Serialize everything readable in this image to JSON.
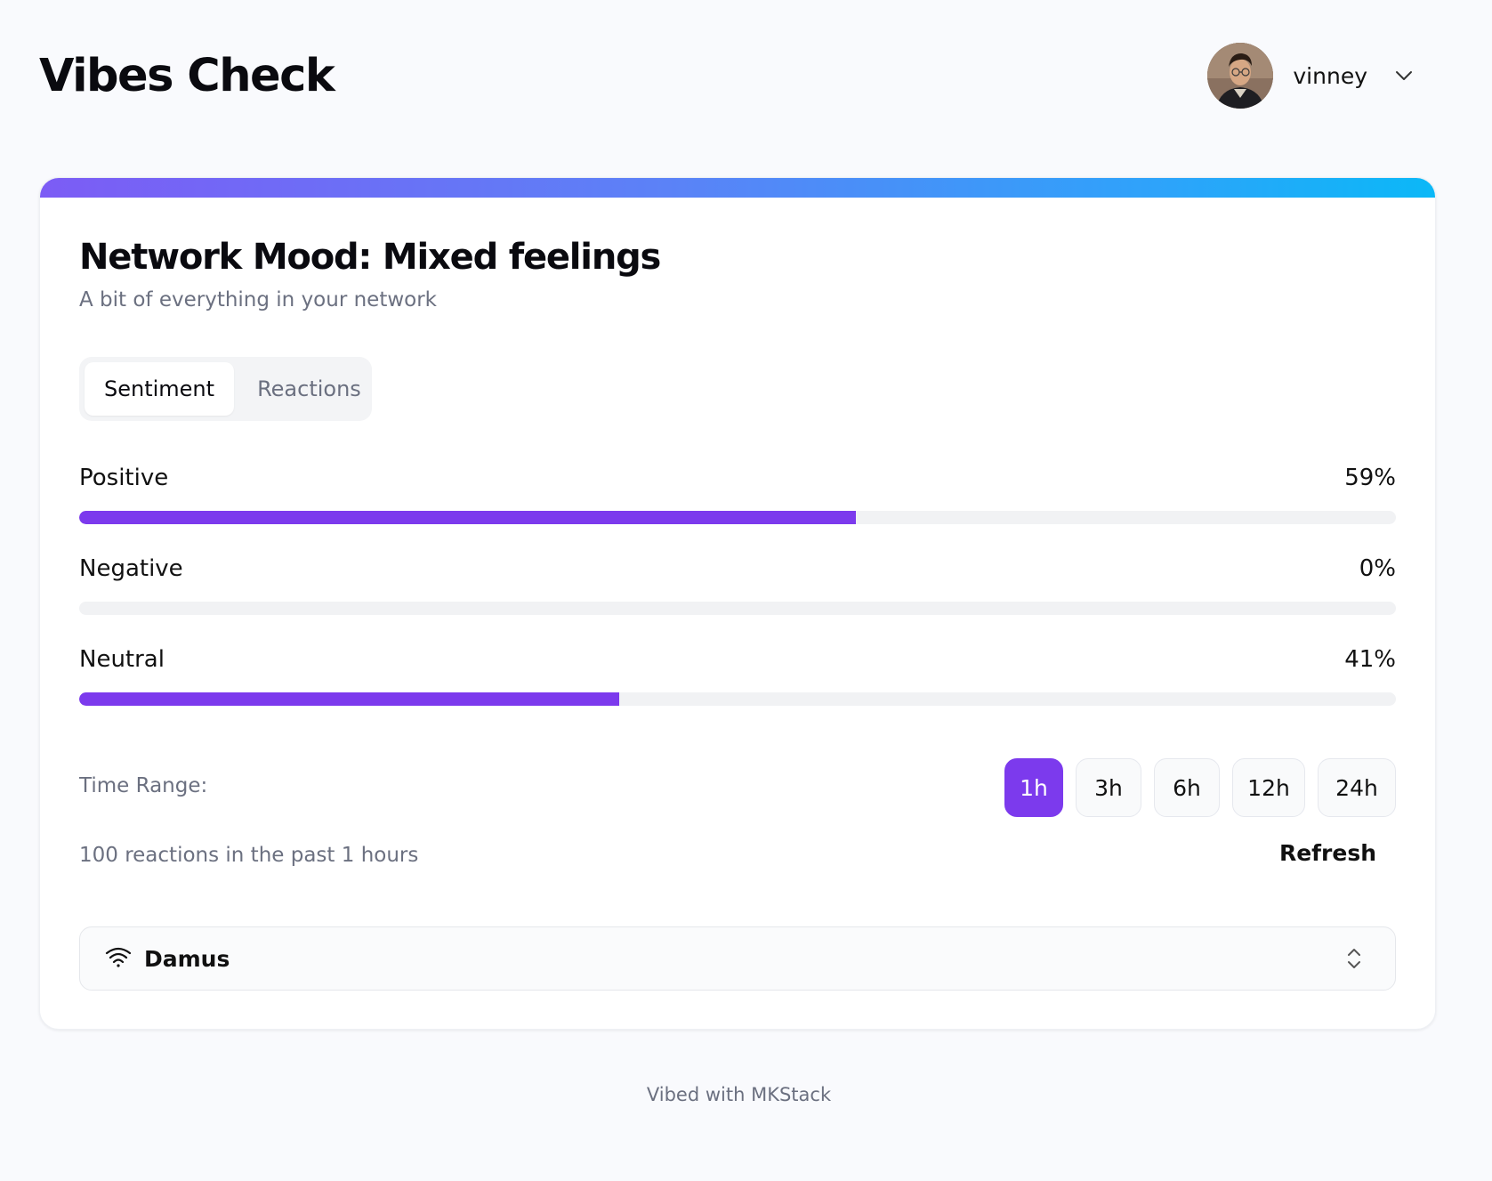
{
  "header": {
    "title": "Vibes Check",
    "user": {
      "name": "vinney",
      "avatar_icon": "avatar-photo"
    }
  },
  "card": {
    "accent_gradient": [
      "#7c5cf5",
      "#0bb8f7"
    ],
    "title": "Network Mood: Mixed feelings",
    "subtitle": "A bit of everything in your network",
    "tabs": [
      {
        "label": "Sentiment",
        "active": true
      },
      {
        "label": "Reactions",
        "active": false
      }
    ],
    "metrics": [
      {
        "label": "Positive",
        "value_text": "59%",
        "percent": 59
      },
      {
        "label": "Negative",
        "value_text": "0%",
        "percent": 0
      },
      {
        "label": "Neutral",
        "value_text": "41%",
        "percent": 41
      }
    ],
    "bar_color": "#7c3aed",
    "time_range": {
      "label": "Time Range:",
      "options": [
        "1h",
        "3h",
        "6h",
        "12h",
        "24h"
      ],
      "selected": "1h"
    },
    "reactions_summary": "100 reactions in the past 1 hours",
    "refresh_label": "Refresh",
    "relay": {
      "icon": "wifi-icon",
      "selected": "Damus",
      "toggle_icon": "chevron-up-down-icon"
    }
  },
  "footer": {
    "text": "Vibed with MKStack"
  }
}
